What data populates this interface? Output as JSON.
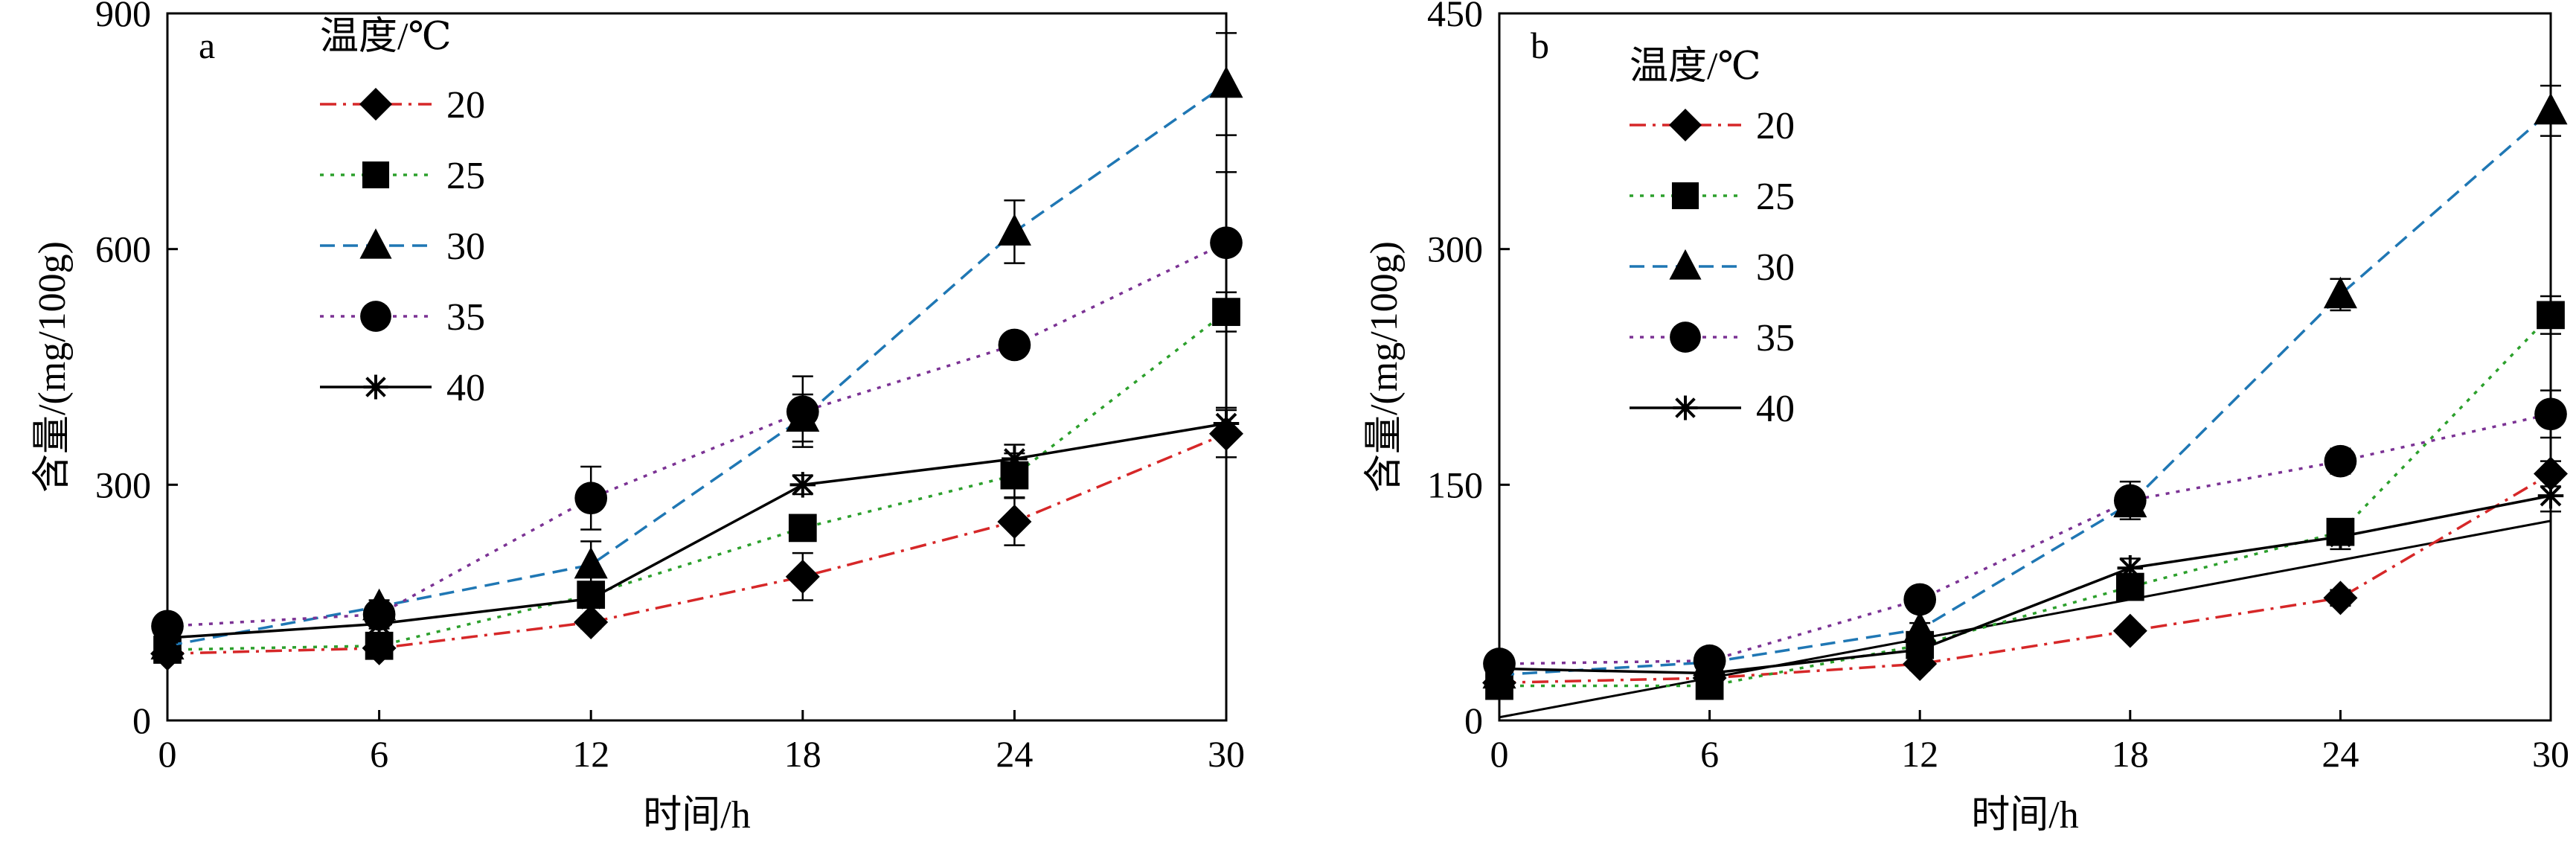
{
  "chart_data": [
    {
      "type": "line",
      "panel_label": "a",
      "xlabel": "时间/h",
      "ylabel": "含量/(mg/100g)",
      "xlim": [
        0,
        30
      ],
      "ylim": [
        0,
        900
      ],
      "x_ticks": [
        0,
        6,
        12,
        18,
        24,
        30
      ],
      "y_ticks": [
        0,
        300,
        600,
        900
      ],
      "legend_title": "温度/℃",
      "legend_position": "top-left",
      "grid": false,
      "x": [
        0,
        6,
        12,
        18,
        24,
        30
      ],
      "series": [
        {
          "name": "20",
          "marker": "diamond",
          "dash": "dashdot",
          "color": "#d62728",
          "values": [
            85,
            92,
            125,
            183,
            253,
            365
          ],
          "errors": [
            6,
            6,
            8,
            30,
            30,
            30
          ]
        },
        {
          "name": "25",
          "marker": "square",
          "dash": "dotted",
          "color": "#2ca02c",
          "values": [
            90,
            95,
            160,
            245,
            312,
            520
          ],
          "errors": [
            6,
            6,
            10,
            12,
            28,
            25
          ]
        },
        {
          "name": "30",
          "marker": "triangle",
          "dash": "dashed",
          "color": "#1f77b4",
          "values": [
            95,
            145,
            198,
            385,
            622,
            810
          ],
          "errors": [
            6,
            8,
            30,
            30,
            40,
            65
          ]
        },
        {
          "name": "35",
          "marker": "circle",
          "dash": "dotted",
          "color": "#7b3294",
          "values": [
            120,
            135,
            283,
            393,
            478,
            608
          ],
          "errors": [
            6,
            8,
            40,
            45,
            10,
            90
          ]
        },
        {
          "name": "40",
          "marker": "asterisk",
          "dash": "solid",
          "color": "#000000",
          "values": [
            105,
            123,
            155,
            300,
            333,
            378
          ],
          "errors": [
            6,
            6,
            10,
            12,
            18,
            20
          ]
        }
      ]
    },
    {
      "type": "line",
      "panel_label": "b",
      "xlabel": "时间/h",
      "ylabel": "含量/(mg/100g)",
      "xlim": [
        0,
        30
      ],
      "ylim": [
        0,
        450
      ],
      "x_ticks": [
        0,
        6,
        12,
        18,
        24,
        30
      ],
      "y_ticks": [
        0,
        150,
        300,
        450
      ],
      "legend_title": "温度/℃",
      "legend_position": "top-left",
      "grid": false,
      "x": [
        0,
        6,
        12,
        18,
        24,
        30
      ],
      "series": [
        {
          "name": "20",
          "marker": "diamond",
          "dash": "dashdot",
          "color": "#d62728",
          "values": [
            24,
            27,
            36,
            57,
            78,
            157
          ],
          "errors": [
            3,
            3,
            4,
            4,
            5,
            8
          ]
        },
        {
          "name": "25",
          "marker": "square",
          "dash": "dotted",
          "color": "#2ca02c",
          "values": [
            22,
            22,
            48,
            85,
            120,
            258
          ],
          "errors": [
            3,
            3,
            4,
            6,
            6,
            12
          ]
        },
        {
          "name": "30",
          "marker": "triangle",
          "dash": "dashed",
          "color": "#1f77b4",
          "values": [
            29,
            37,
            58,
            138,
            271,
            388
          ],
          "errors": [
            3,
            3,
            4,
            8,
            10,
            16
          ]
        },
        {
          "name": "35",
          "marker": "circle",
          "dash": "dotted",
          "color": "#7b3294",
          "values": [
            36,
            38,
            77,
            140,
            165,
            195
          ],
          "errors": [
            3,
            3,
            5,
            12,
            8,
            15
          ]
        },
        {
          "name": "40",
          "marker": "asterisk",
          "dash": "solid",
          "color": "#000000",
          "values": [
            33,
            30,
            45,
            97,
            117,
            143
          ],
          "errors": [
            3,
            3,
            5,
            6,
            8,
            10
          ]
        }
      ],
      "extra_lines": [
        {
          "color": "#000000",
          "dash": "solid",
          "x": [
            0,
            30
          ],
          "y": [
            2,
            127
          ]
        }
      ]
    }
  ]
}
